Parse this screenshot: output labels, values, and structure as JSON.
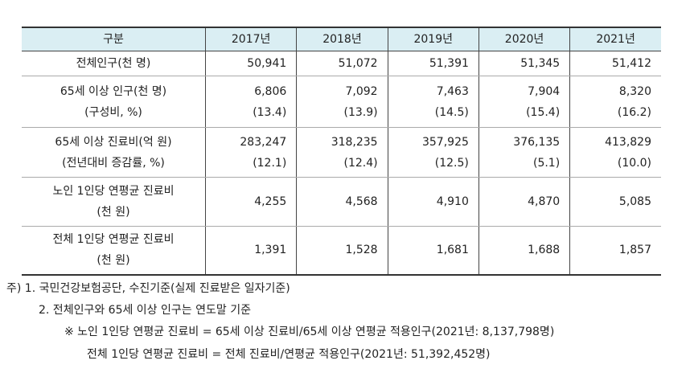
{
  "table": {
    "header": [
      "구분",
      "2017년",
      "2018년",
      "2019년",
      "2020년",
      "2021년"
    ],
    "rows": [
      {
        "label": [
          "전체인구(천 명)"
        ],
        "values": [
          [
            "50,941"
          ],
          [
            "51,072"
          ],
          [
            "51,391"
          ],
          [
            "51,345"
          ],
          [
            "51,412"
          ]
        ]
      },
      {
        "label": [
          "65세 이상 인구(천 명)",
          "(구성비, %)"
        ],
        "values": [
          [
            "6,806",
            "(13.4)"
          ],
          [
            "7,092",
            "(13.9)"
          ],
          [
            "7,463",
            "(14.5)"
          ],
          [
            "7,904",
            "(15.4)"
          ],
          [
            "8,320",
            "(16.2)"
          ]
        ]
      },
      {
        "label": [
          "65세 이상 진료비(억 원)",
          "(전년대비 증감률, %)"
        ],
        "values": [
          [
            "283,247",
            "(12.1)"
          ],
          [
            "318,235",
            "(12.4)"
          ],
          [
            "357,925",
            "(12.5)"
          ],
          [
            "376,135",
            "(5.1)"
          ],
          [
            "413,829",
            "(10.0)"
          ]
        ]
      },
      {
        "label": [
          "노인 1인당 연평균 진료비",
          "(천 원)"
        ],
        "values": [
          [
            "4,255"
          ],
          [
            "4,568"
          ],
          [
            "4,910"
          ],
          [
            "4,870"
          ],
          [
            "5,085"
          ]
        ]
      },
      {
        "label": [
          "전체 1인당 연평균 진료비",
          "(천 원)"
        ],
        "values": [
          [
            "1,391"
          ],
          [
            "1,528"
          ],
          [
            "1,681"
          ],
          [
            "1,688"
          ],
          [
            "1,857"
          ]
        ]
      }
    ]
  },
  "notes": [
    "주) 1. 국민건강보험공단, 수진기준(실제 진료받은 일자기준)",
    "2. 전체인구와 65세 이상 인구는 연도말 기준",
    "※ 노인 1인당 연평균 진료비 = 65세 이상 진료비/65세 이상 연평균 적용인구(2021년: 8,137,798명)",
    "전체 1인당 연평균 진료비 = 전체 진료비/연평균 적용인구(2021년: 51,392,452명)"
  ]
}
